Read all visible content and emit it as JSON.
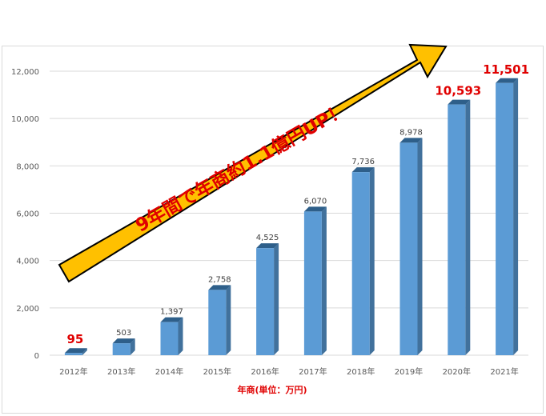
{
  "chart_data": {
    "type": "bar",
    "categories": [
      "2012年",
      "2013年",
      "2014年",
      "2015年",
      "2016年",
      "2017年",
      "2018年",
      "2019年",
      "2020年",
      "2021年"
    ],
    "values": [
      95,
      503,
      1397,
      2758,
      4525,
      6070,
      7736,
      8978,
      10593,
      11501
    ],
    "data_labels": [
      "95",
      "503",
      "1,397",
      "2,758",
      "4,525",
      "6,070",
      "7,736",
      "8,978",
      "10,593",
      "11,501"
    ],
    "highlight_labels": [
      0,
      8,
      9
    ],
    "yticks": [
      0,
      2000,
      4000,
      6000,
      8000,
      10000,
      12000
    ],
    "ytick_labels": [
      "0",
      "2,000",
      "4,000",
      "6,000",
      "8,000",
      "10,000",
      "12,000"
    ],
    "ylim": [
      0,
      12000
    ],
    "xlabel": "年商(単位：万円)",
    "ylabel": "",
    "grid": true,
    "annotation": "9年間で年商約1.1億円UP！",
    "colors": {
      "bar_front": "#5b9bd5",
      "bar_side": "#41719c",
      "bar_top": "#2e5f8a",
      "arrow_fill": "#ffc000",
      "arrow_stroke": "#000000",
      "highlight": "#e00000",
      "grid": "#d9d9d9"
    }
  }
}
